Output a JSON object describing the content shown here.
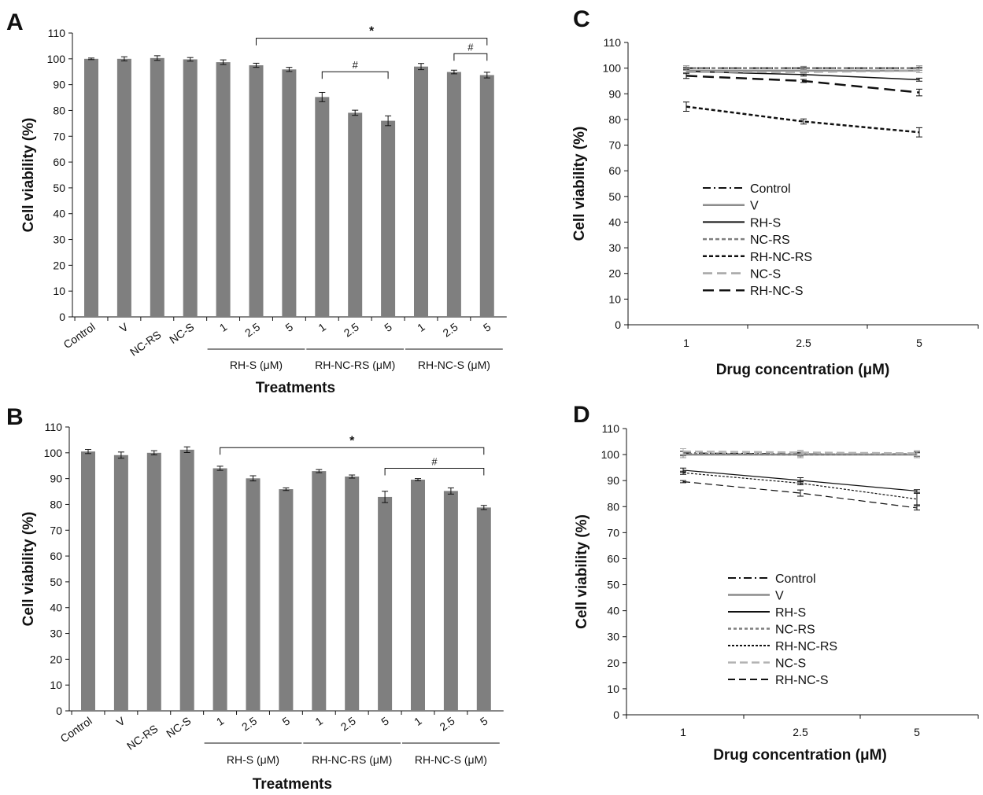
{
  "chart_data": [
    {
      "panel": "A",
      "type": "bar",
      "ylabel": "Cell viability (%)",
      "xlabel": "Treatments",
      "ylim": [
        0,
        110
      ],
      "yticks": [
        0,
        10,
        20,
        30,
        40,
        50,
        60,
        70,
        80,
        90,
        100,
        110
      ],
      "bar_color": "#7f7f7f",
      "categories": [
        "Control",
        "V",
        "NC-RS",
        "NC-S",
        "1",
        "2.5",
        "5",
        "1",
        "2.5",
        "5",
        "1",
        "2.5",
        "5"
      ],
      "values": [
        100.0,
        100.0,
        100.3,
        99.8,
        98.7,
        97.5,
        95.9,
        85.2,
        79.1,
        76.0,
        97.0,
        94.9,
        93.7
      ],
      "errors": [
        0.3,
        0.8,
        0.9,
        0.7,
        0.9,
        0.8,
        0.8,
        1.8,
        1.0,
        1.9,
        1.2,
        0.7,
        1.1
      ],
      "groups": [
        {
          "label": "RH-S (μM)",
          "start": 4,
          "end": 6
        },
        {
          "label": "RH-NC-RS (μM)",
          "start": 7,
          "end": 9
        },
        {
          "label": "RH-NC-S (μM)",
          "start": 10,
          "end": 12
        }
      ],
      "significance": [
        {
          "label": "*",
          "from": 5,
          "to": 12,
          "y": 108
        },
        {
          "label": "#",
          "from": 7,
          "to": 9,
          "y": 95
        },
        {
          "label": "#",
          "from": 11,
          "to": 12,
          "y": 102
        }
      ]
    },
    {
      "panel": "B",
      "type": "bar",
      "ylabel": "Cell viability (%)",
      "xlabel": "Treatments",
      "ylim": [
        0,
        110
      ],
      "yticks": [
        0,
        10,
        20,
        30,
        40,
        50,
        60,
        70,
        80,
        90,
        100,
        110
      ],
      "bar_color": "#7f7f7f",
      "categories": [
        "Control",
        "V",
        "NC-RS",
        "NC-S",
        "1",
        "2.5",
        "5",
        "1",
        "2.5",
        "5",
        "1",
        "2.5",
        "5"
      ],
      "values": [
        100.5,
        99.1,
        100.0,
        101.2,
        94.0,
        90.1,
        85.9,
        92.9,
        90.8,
        82.9,
        89.6,
        85.2,
        78.8
      ],
      "errors": [
        0.8,
        1.2,
        0.8,
        1.1,
        0.8,
        1.0,
        0.5,
        0.6,
        0.6,
        2.2,
        0.4,
        1.2,
        0.8
      ],
      "groups": [
        {
          "label": "RH-S (μM)",
          "start": 4,
          "end": 6
        },
        {
          "label": "RH-NC-RS (μM)",
          "start": 7,
          "end": 9
        },
        {
          "label": "RH-NC-S (μM)",
          "start": 10,
          "end": 12
        }
      ],
      "significance": [
        {
          "label": "*",
          "from": 4,
          "to": 12,
          "y": 102
        },
        {
          "label": "#",
          "from": 9,
          "to": 12,
          "y": 94
        }
      ]
    },
    {
      "panel": "C",
      "type": "line",
      "ylabel": "Cell viability (%)",
      "xlabel": "Drug concentration (μM)",
      "categories": [
        "1",
        "2.5",
        "5"
      ],
      "ylim": [
        0,
        110
      ],
      "yticks": [
        0,
        10,
        20,
        30,
        40,
        50,
        60,
        70,
        80,
        90,
        100,
        110
      ],
      "series": [
        {
          "name": "Control",
          "values": [
            100,
            100,
            100
          ],
          "errors": [
            0.3,
            0.3,
            0.3
          ],
          "color": "#111111",
          "dash": "10,4,2,4",
          "width": 2
        },
        {
          "name": "V",
          "values": [
            99.0,
            99.0,
            99.0
          ],
          "errors": [
            0.8,
            0.8,
            0.8
          ],
          "color": "#8c8c8c",
          "dash": "",
          "width": 2.5
        },
        {
          "name": "RH-S",
          "values": [
            98.7,
            97.5,
            95.5
          ],
          "errors": [
            0.8,
            0.6,
            0.6
          ],
          "color": "#111111",
          "dash": "",
          "width": 1.5
        },
        {
          "name": "NC-RS",
          "values": [
            100.0,
            100.0,
            100.0
          ],
          "errors": [
            0.9,
            0.7,
            0.9
          ],
          "color": "#7f7f7f",
          "dash": "5,3",
          "width": 2.5
        },
        {
          "name": "RH-NC-RS",
          "values": [
            85.0,
            79.2,
            75.0
          ],
          "errors": [
            1.8,
            1.0,
            1.8
          ],
          "color": "#111111",
          "dash": "5,3",
          "width": 2.5
        },
        {
          "name": "NC-S",
          "values": [
            98.5,
            98.5,
            99.0
          ],
          "errors": [
            0.7,
            0.6,
            0.8
          ],
          "color": "#a6a6a6",
          "dash": "12,6",
          "width": 2.5
        },
        {
          "name": "RH-NC-S",
          "values": [
            97.0,
            95.0,
            90.5
          ],
          "errors": [
            1.0,
            0.6,
            1.3
          ],
          "color": "#111111",
          "dash": "14,7",
          "width": 2.5
        }
      ]
    },
    {
      "panel": "D",
      "type": "line",
      "ylabel": "Cell viability (%)",
      "xlabel": "Drug concentration (μM)",
      "categories": [
        "1",
        "2.5",
        "5"
      ],
      "ylim": [
        0,
        110
      ],
      "yticks": [
        0,
        10,
        20,
        30,
        40,
        50,
        60,
        70,
        80,
        90,
        100,
        110
      ],
      "series": [
        {
          "name": "Control",
          "values": [
            100.5,
            100.2,
            100.0
          ],
          "errors": [
            0.8,
            0.6,
            0.7
          ],
          "color": "#111111",
          "dash": "10,4,2,4",
          "width": 2
        },
        {
          "name": "V",
          "values": [
            100.0,
            100.0,
            100.0
          ],
          "errors": [
            1.2,
            1.2,
            1.2
          ],
          "color": "#8c8c8c",
          "dash": "",
          "width": 2.5
        },
        {
          "name": "RH-S",
          "values": [
            94.0,
            90.1,
            86.0
          ],
          "errors": [
            0.8,
            1.0,
            0.5
          ],
          "color": "#111111",
          "dash": "",
          "width": 1.2
        },
        {
          "name": "NC-RS",
          "values": [
            100.3,
            100.0,
            100.2
          ],
          "errors": [
            0.8,
            0.6,
            0.8
          ],
          "color": "#7f7f7f",
          "dash": "4,3",
          "width": 2.5
        },
        {
          "name": "RH-NC-RS",
          "values": [
            93.0,
            89.0,
            82.9
          ],
          "errors": [
            0.6,
            0.6,
            2.2
          ],
          "color": "#111111",
          "dash": "3,2",
          "width": 1.2
        },
        {
          "name": "NC-S",
          "values": [
            101.2,
            100.8,
            100.5
          ],
          "errors": [
            1.1,
            0.9,
            1.0
          ],
          "color": "#b3b3b3",
          "dash": "10,5",
          "width": 2.5
        },
        {
          "name": "RH-NC-S",
          "values": [
            89.6,
            85.2,
            79.5
          ],
          "errors": [
            0.4,
            1.2,
            0.8
          ],
          "color": "#111111",
          "dash": "9,5",
          "width": 1.2
        }
      ]
    }
  ]
}
